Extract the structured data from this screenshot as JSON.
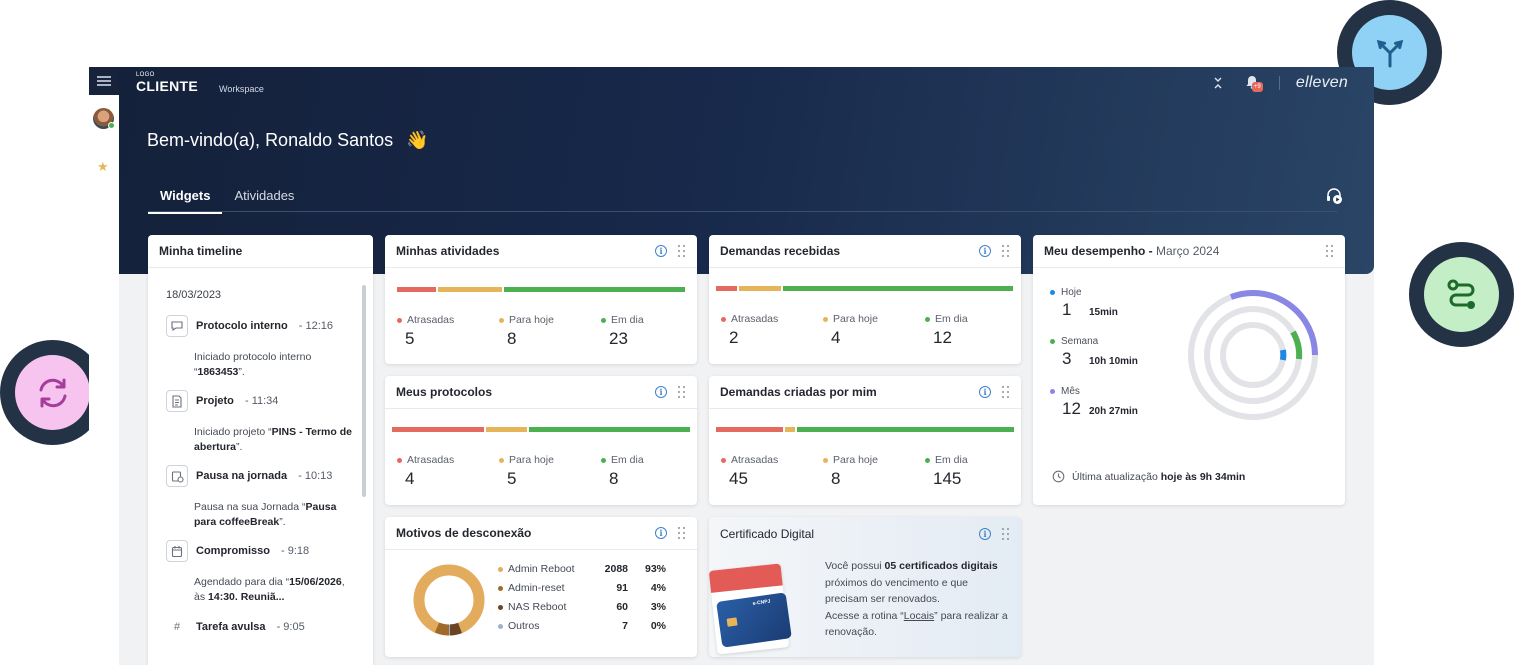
{
  "header": {
    "logo_small": "LOGO",
    "logo_big": "CLIENTE",
    "workspace": "Workspace",
    "brand": "elleven",
    "notification_badge": "+9"
  },
  "welcome": {
    "prefix": "Bem-vindo(a),",
    "name": "Ronaldo Santos",
    "emoji": "👋"
  },
  "tabs": [
    {
      "label": "Widgets",
      "active": true
    },
    {
      "label": "Atividades",
      "active": false
    }
  ],
  "colors": {
    "red": "#e4695f",
    "yellow": "#e6b55a",
    "green": "#4caf50",
    "blue": "#3d82c9",
    "purple": "#8a86e6"
  },
  "timeline": {
    "title": "Minha timeline",
    "date": "18/03/2023",
    "items": [
      {
        "icon": "chat-icon",
        "name": "Protocolo interno",
        "time": "12:16",
        "desc_pre": "Iniciado protocolo interno “",
        "desc_bold": "1863453",
        "desc_post": "”."
      },
      {
        "icon": "document-icon",
        "name": "Projeto",
        "time": "11:34",
        "desc_pre": "Iniciado projeto “",
        "desc_bold": "PINS - Termo de abertura",
        "desc_post": "”."
      },
      {
        "icon": "clock-pause-icon",
        "name": "Pausa na jornada",
        "time": "10:13",
        "desc_pre": "Pausa na sua Jornada “",
        "desc_bold": "Pausa para coffeeBreak",
        "desc_post": "”."
      },
      {
        "icon": "calendar-icon",
        "name": "Compromisso",
        "time": "9:18",
        "desc_pre": "Agendado para dia “",
        "desc_bold": "15/06/2026",
        "desc_mid": ", às ",
        "desc_bold2": "14:30. Reuniã...",
        "desc_post": ""
      },
      {
        "icon": "hash-icon",
        "name": "Tarefa avulsa",
        "time": "9:05"
      }
    ]
  },
  "minhas_atividades": {
    "title": "Minhas atividades",
    "stats": [
      {
        "label": "Atrasadas",
        "value": "5"
      },
      {
        "label": "Para hoje",
        "value": "8"
      },
      {
        "label": "Em dia",
        "value": "23"
      }
    ]
  },
  "demandas_recebidas": {
    "title": "Demandas recebidas",
    "stats": [
      {
        "label": "Atrasadas",
        "value": "2"
      },
      {
        "label": "Para hoje",
        "value": "4"
      },
      {
        "label": "Em dia",
        "value": "12"
      }
    ]
  },
  "meus_protocolos": {
    "title": "Meus protocolos",
    "stats": [
      {
        "label": "Atrasadas",
        "value": "4"
      },
      {
        "label": "Para hoje",
        "value": "5"
      },
      {
        "label": "Em dia",
        "value": "8"
      }
    ]
  },
  "demandas_criadas": {
    "title": "Demandas criadas por mim",
    "stats": [
      {
        "label": "Atrasadas",
        "value": "45"
      },
      {
        "label": "Para hoje",
        "value": "8"
      },
      {
        "label": "Em dia",
        "value": "145"
      }
    ]
  },
  "desempenho": {
    "title": "Meu desempenho - ",
    "period": "Março 2024",
    "rows": [
      {
        "label": "Hoje",
        "num": "1",
        "time": "15min",
        "color": "#1e88e5"
      },
      {
        "label": "Semana",
        "num": "3",
        "time": "10h 10min",
        "color": "#4caf50"
      },
      {
        "label": "Mês",
        "num": "12",
        "time": "20h 27min",
        "color": "#8a86e6"
      }
    ],
    "update_prefix": "Última atualização ",
    "update_bold": "hoje às 9h 34min"
  },
  "motivos": {
    "title": "Motivos de desconexão",
    "rows": [
      {
        "label": "Admin Reboot",
        "num": "2088",
        "pct": "93%",
        "color": "#e2ac5c"
      },
      {
        "label": "Admin-reset",
        "num": "91",
        "pct": "4%",
        "color": "#a06a2a"
      },
      {
        "label": "NAS Reboot",
        "num": "60",
        "pct": "3%",
        "color": "#6b4423"
      },
      {
        "label": "Outros",
        "num": "7",
        "pct": "0%",
        "color": "#9db3cc"
      }
    ]
  },
  "certificado": {
    "title": "Certificado Digital",
    "l1_pre": "Você possui ",
    "l1_bold": "05 certificados digitais",
    "l2": "próximos do vencimento e que",
    "l3": "precisam ser renovados.",
    "l4_pre": "Acesse a rotina “",
    "l4_link": "Locais",
    "l4_post": "” para realizar a",
    "l5": "renovação.",
    "card_text": "e-CNPJ"
  }
}
